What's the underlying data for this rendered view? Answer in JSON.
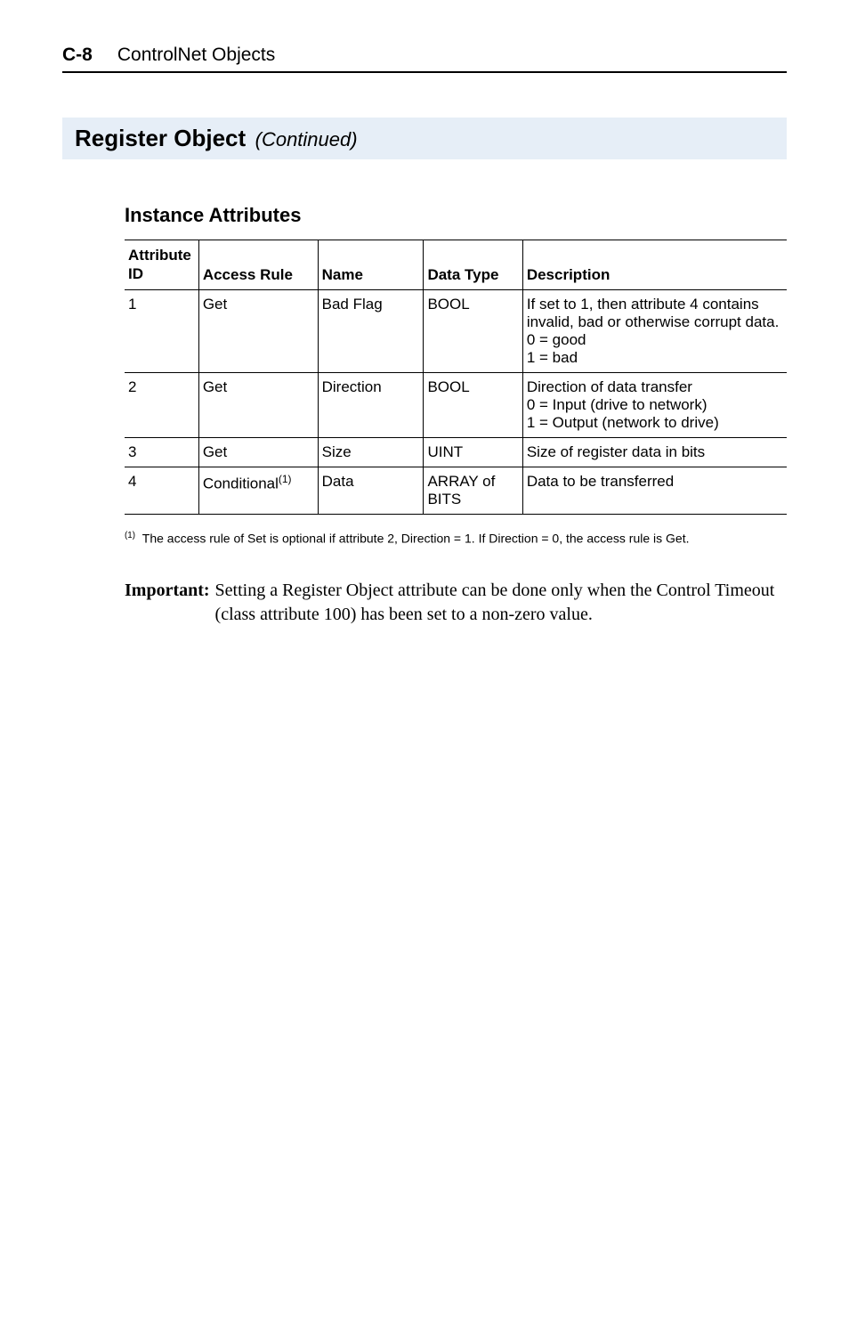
{
  "header": {
    "page_number": "C-8",
    "title": "ControlNet Objects"
  },
  "section": {
    "title": "Register Object",
    "continued": "(Continued)"
  },
  "subsection_title": "Instance Attributes",
  "table": {
    "columns": {
      "attr_id_line1": "Attribute",
      "attr_id_line2": "ID",
      "access_rule": "Access Rule",
      "name": "Name",
      "data_type": "Data Type",
      "description": "Description"
    },
    "rows": [
      {
        "id": "1",
        "access": "Get",
        "name": "Bad Flag",
        "type": "BOOL",
        "desc": "If set to 1, then attribute 4 contains invalid, bad or otherwise corrupt data.\n0 = good\n1 = bad"
      },
      {
        "id": "2",
        "access": "Get",
        "name": "Direction",
        "type": "BOOL",
        "desc": "Direction of data transfer\n0 = Input (drive to network)\n1 = Output (network to drive)"
      },
      {
        "id": "3",
        "access": "Get",
        "name": "Size",
        "type": "UINT",
        "desc": "Size of register data in bits"
      },
      {
        "id": "4",
        "access": "Conditional",
        "access_sup": "(1)",
        "name": "Data",
        "type": "ARRAY of BITS",
        "desc": "Data to be transferred"
      }
    ]
  },
  "footnote": {
    "marker": "(1)",
    "text": "The access rule of Set is optional if attribute 2, Direction = 1. If Direction = 0, the access rule is Get."
  },
  "important": {
    "label": "Important:",
    "text": "Setting a Register Object attribute can be done only when the Control Timeout (class attribute 100) has been set to a non-zero value."
  },
  "colors": {
    "section_bg": "#e6eef7",
    "text": "#000000",
    "background": "#ffffff"
  }
}
